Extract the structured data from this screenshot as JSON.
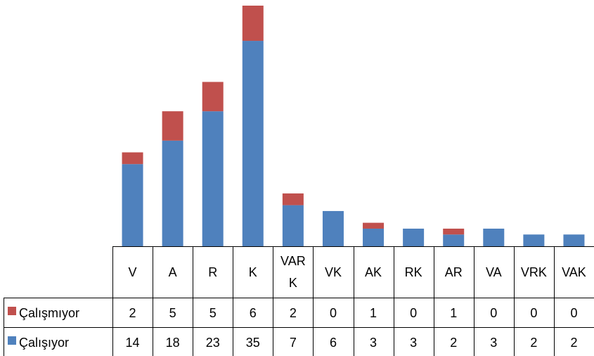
{
  "chart_data": {
    "type": "bar",
    "stacked": true,
    "data_table": true,
    "categories": [
      "V",
      "A",
      "R",
      "K",
      "VARK",
      "VK",
      "AK",
      "RK",
      "AR",
      "VA",
      "VRK",
      "VAK"
    ],
    "category_labels": [
      [
        "V"
      ],
      [
        "A"
      ],
      [
        "R"
      ],
      [
        "K"
      ],
      [
        "VAR",
        "K"
      ],
      [
        "VK"
      ],
      [
        "AK"
      ],
      [
        "RK"
      ],
      [
        "AR"
      ],
      [
        "VA"
      ],
      [
        "VRK"
      ],
      [
        "VAK"
      ]
    ],
    "series": [
      {
        "name": "Çalışıyor",
        "color": "#4F81BD",
        "values": [
          14,
          18,
          23,
          35,
          7,
          6,
          3,
          3,
          2,
          3,
          2,
          2
        ]
      },
      {
        "name": "Çalışmıyor",
        "color": "#C0504D",
        "values": [
          2,
          5,
          5,
          6,
          2,
          0,
          1,
          0,
          1,
          0,
          0,
          0
        ]
      }
    ],
    "ylim": [
      0,
      41
    ],
    "grid": false,
    "legend": "data-table-left"
  }
}
